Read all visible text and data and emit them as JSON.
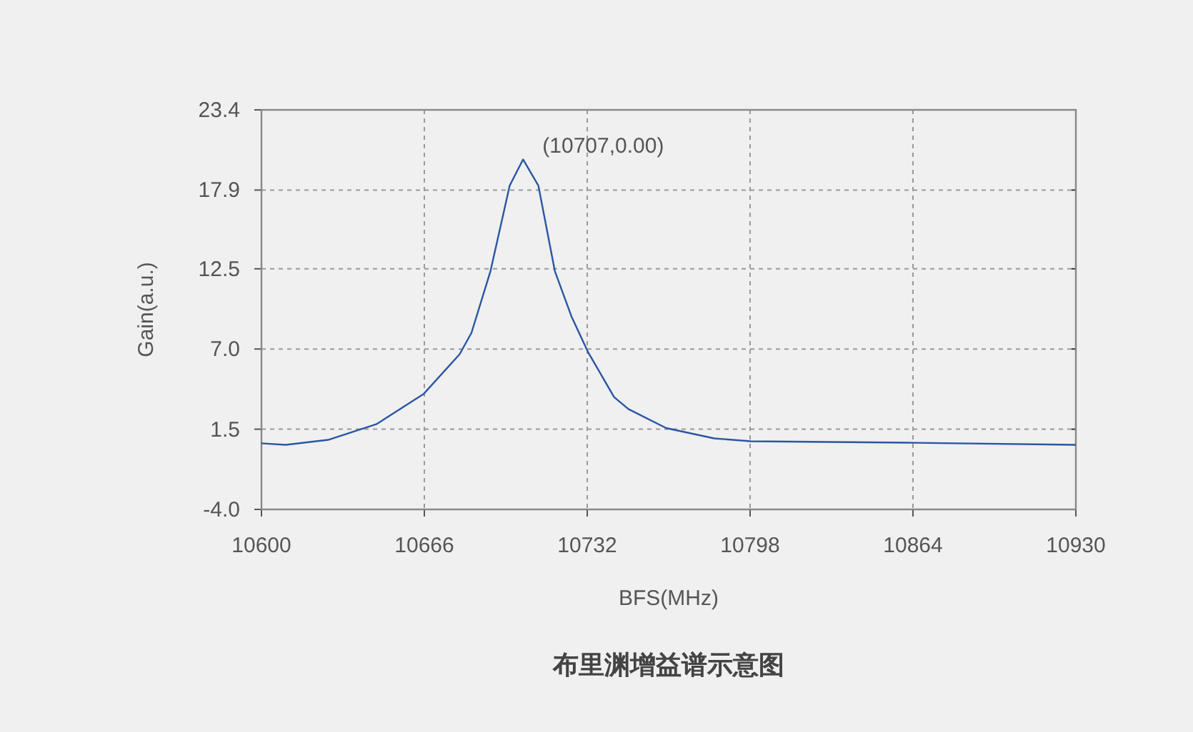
{
  "chart_data": {
    "type": "line",
    "title": "布里渊增益谱示意图",
    "xlabel": "BFS(MHz)",
    "ylabel": "Gain(a.u.)",
    "annotations": [
      "(10707,0.00)"
    ],
    "x": [
      10600,
      10609.8,
      10627,
      10646.5,
      10665.8,
      10680.3,
      10685.1,
      10692.8,
      10700.6,
      10706,
      10712.2,
      10718.9,
      10725.6,
      10732.3,
      10742.9,
      10748.7,
      10764,
      10783.5,
      10798.3,
      10864.6,
      10930
    ],
    "series": [
      {
        "color": "#2b55a3",
        "values": [
          0.53,
          0.43,
          0.77,
          1.84,
          3.93,
          6.64,
          8.11,
          12.34,
          18.21,
          20.0,
          18.21,
          12.34,
          9.24,
          6.8,
          3.7,
          2.88,
          1.58,
          0.87,
          0.67,
          0.57,
          0.43
        ]
      }
    ],
    "xlim": [
      10600,
      10930
    ],
    "ylim": [
      -4.0,
      23.4
    ],
    "xticks": [
      10600,
      10666,
      10732,
      10798,
      10864,
      10930
    ],
    "yticks": [
      {
        "value": -4,
        "label": "-4.0"
      },
      1.5,
      {
        "value": 7,
        "label": "7.0"
      },
      12.5,
      17.9,
      23.4
    ],
    "grid": true
  }
}
